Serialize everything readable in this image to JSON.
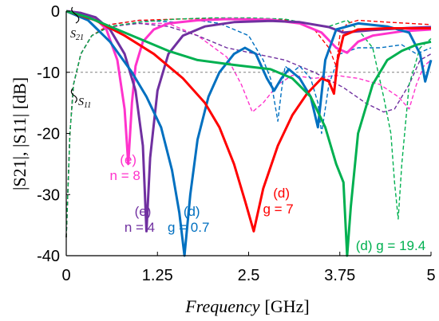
{
  "chart_data": {
    "type": "line",
    "xlabel_italic": "Frequency",
    "xlabel_unit": "[GHz]",
    "ylabel": "|S21|, |S11| [dB]",
    "xlim": [
      0,
      5
    ],
    "ylim": [
      -40,
      0
    ],
    "x_ticks": [
      "0",
      "1.25",
      "2.5",
      "3.75",
      "5"
    ],
    "y_ticks": [
      "0",
      "-10",
      "-20",
      "-30",
      "-40"
    ],
    "reference_line_db": -10,
    "s21_label": "S",
    "s21_sub": "21",
    "s11_label": "S",
    "s11_sub": "11",
    "series": [
      {
        "color": "#ff33cc",
        "param": "S21",
        "dash": false,
        "points": [
          [
            0,
            0
          ],
          [
            0.2,
            -0.3
          ],
          [
            0.4,
            -1.2
          ],
          [
            0.55,
            -3
          ],
          [
            0.7,
            -8
          ],
          [
            0.8,
            -16
          ],
          [
            0.85,
            -25
          ],
          [
            0.9,
            -15
          ],
          [
            0.95,
            -9
          ],
          [
            1.05,
            -5
          ],
          [
            1.2,
            -3
          ],
          [
            1.4,
            -2
          ],
          [
            1.8,
            -1.5
          ],
          [
            2.2,
            -1.3
          ],
          [
            2.8,
            -1.4
          ],
          [
            3.2,
            -2
          ],
          [
            3.5,
            -3.5
          ],
          [
            3.7,
            -6
          ],
          [
            3.85,
            -6.8
          ],
          [
            4.0,
            -5
          ],
          [
            4.2,
            -4
          ],
          [
            4.6,
            -3.3
          ],
          [
            5,
            -3
          ]
        ]
      },
      {
        "color": "#7030a0",
        "param": "S21",
        "dash": false,
        "points": [
          [
            0,
            0
          ],
          [
            0.2,
            -0.3
          ],
          [
            0.4,
            -1
          ],
          [
            0.6,
            -3
          ],
          [
            0.8,
            -7
          ],
          [
            0.95,
            -13
          ],
          [
            1.05,
            -22
          ],
          [
            1.1,
            -36
          ],
          [
            1.15,
            -24
          ],
          [
            1.25,
            -13
          ],
          [
            1.4,
            -7
          ],
          [
            1.6,
            -4
          ],
          [
            1.9,
            -2.5
          ],
          [
            2.3,
            -1.8
          ],
          [
            2.8,
            -1.6
          ],
          [
            3.2,
            -1.8
          ],
          [
            3.6,
            -2.6
          ],
          [
            3.8,
            -3.5
          ],
          [
            4.2,
            -3.1
          ],
          [
            4.6,
            -2.8
          ],
          [
            5,
            -2.6
          ]
        ]
      },
      {
        "color": "#0070c0",
        "param": "S21",
        "dash": false,
        "points": [
          [
            0,
            0
          ],
          [
            0.3,
            -1.5
          ],
          [
            0.6,
            -5
          ],
          [
            0.9,
            -10
          ],
          [
            1.1,
            -14
          ],
          [
            1.3,
            -19
          ],
          [
            1.45,
            -26
          ],
          [
            1.55,
            -33
          ],
          [
            1.62,
            -40
          ],
          [
            1.7,
            -30
          ],
          [
            1.8,
            -21
          ],
          [
            1.95,
            -14
          ],
          [
            2.1,
            -10
          ],
          [
            2.3,
            -7
          ],
          [
            2.45,
            -6
          ],
          [
            2.6,
            -7
          ],
          [
            2.75,
            -11
          ],
          [
            2.85,
            -13
          ],
          [
            2.95,
            -11
          ],
          [
            3.05,
            -9.5
          ],
          [
            3.2,
            -11
          ],
          [
            3.35,
            -14
          ],
          [
            3.45,
            -19
          ],
          [
            3.55,
            -8
          ],
          [
            3.7,
            -3
          ],
          [
            4.0,
            -2
          ],
          [
            4.4,
            -2.5
          ],
          [
            4.7,
            -3.5
          ],
          [
            4.85,
            -7
          ],
          [
            4.92,
            -11.5
          ],
          [
            5,
            -8
          ]
        ]
      },
      {
        "color": "#ff0000",
        "param": "S21",
        "dash": false,
        "points": [
          [
            0,
            0
          ],
          [
            0.4,
            -1.5
          ],
          [
            0.8,
            -4
          ],
          [
            1.2,
            -7
          ],
          [
            1.6,
            -11
          ],
          [
            1.9,
            -15
          ],
          [
            2.1,
            -19
          ],
          [
            2.3,
            -25
          ],
          [
            2.45,
            -31
          ],
          [
            2.57,
            -36
          ],
          [
            2.7,
            -29
          ],
          [
            2.9,
            -22
          ],
          [
            3.1,
            -17
          ],
          [
            3.3,
            -13.5
          ],
          [
            3.5,
            -11
          ],
          [
            3.6,
            -11.5
          ],
          [
            3.67,
            -13.5
          ],
          [
            3.72,
            -8
          ],
          [
            3.8,
            -4
          ],
          [
            4.0,
            -3
          ],
          [
            4.4,
            -2.8
          ],
          [
            5,
            -2.8
          ]
        ]
      },
      {
        "color": "#00b050",
        "param": "S21",
        "dash": false,
        "points": [
          [
            0,
            0
          ],
          [
            0.3,
            -1
          ],
          [
            0.6,
            -2.5
          ],
          [
            1.0,
            -4.5
          ],
          [
            1.4,
            -6.5
          ],
          [
            1.8,
            -8
          ],
          [
            2.3,
            -8.8
          ],
          [
            2.8,
            -9.5
          ],
          [
            3.1,
            -11
          ],
          [
            3.35,
            -14
          ],
          [
            3.55,
            -19
          ],
          [
            3.7,
            -25
          ],
          [
            3.8,
            -28
          ],
          [
            3.85,
            -40
          ],
          [
            3.9,
            -32
          ],
          [
            4.0,
            -20
          ],
          [
            4.2,
            -12
          ],
          [
            4.4,
            -8
          ],
          [
            4.6,
            -6.5
          ],
          [
            4.8,
            -5.5
          ],
          [
            5,
            -5
          ]
        ]
      },
      {
        "color": "#ff33cc",
        "param": "S11",
        "dash": true,
        "points": [
          [
            0,
            -37
          ],
          [
            0.05,
            -20
          ],
          [
            0.1,
            -12
          ],
          [
            0.2,
            -7
          ],
          [
            0.35,
            -4
          ],
          [
            0.55,
            -2.8
          ],
          [
            0.9,
            -2
          ],
          [
            1.4,
            -2
          ],
          [
            1.8,
            -4
          ],
          [
            2.2,
            -7.5
          ],
          [
            2.4,
            -12
          ],
          [
            2.55,
            -16.5
          ],
          [
            2.7,
            -15
          ],
          [
            2.9,
            -12
          ],
          [
            3.1,
            -10.5
          ],
          [
            3.4,
            -11
          ],
          [
            3.7,
            -10.5
          ],
          [
            4.0,
            -11
          ],
          [
            4.3,
            -12
          ],
          [
            4.55,
            -14
          ],
          [
            4.7,
            -16
          ],
          [
            4.8,
            -12
          ],
          [
            4.9,
            -9
          ],
          [
            5,
            -8
          ]
        ]
      },
      {
        "color": "#7030a0",
        "param": "S11",
        "dash": true,
        "points": [
          [
            0,
            -37
          ],
          [
            0.05,
            -20
          ],
          [
            0.1,
            -12
          ],
          [
            0.2,
            -7
          ],
          [
            0.35,
            -4
          ],
          [
            0.6,
            -2.5
          ],
          [
            1.0,
            -2
          ],
          [
            1.4,
            -2.5
          ],
          [
            1.8,
            -4
          ],
          [
            2.2,
            -6
          ],
          [
            2.6,
            -7
          ],
          [
            3.0,
            -8
          ],
          [
            3.4,
            -10
          ],
          [
            3.8,
            -12.5
          ],
          [
            4.1,
            -15
          ],
          [
            4.35,
            -16.5
          ],
          [
            4.5,
            -16
          ],
          [
            4.7,
            -12
          ],
          [
            4.85,
            -8
          ],
          [
            5,
            -7
          ]
        ]
      },
      {
        "color": "#0070c0",
        "param": "S11",
        "dash": true,
        "points": [
          [
            0,
            -37
          ],
          [
            0.05,
            -20
          ],
          [
            0.1,
            -12
          ],
          [
            0.2,
            -7
          ],
          [
            0.35,
            -4
          ],
          [
            0.6,
            -2.2
          ],
          [
            1.0,
            -1.5
          ],
          [
            1.5,
            -1.8
          ],
          [
            1.8,
            -1.5
          ],
          [
            2.1,
            -2
          ],
          [
            2.3,
            -3
          ],
          [
            2.5,
            -4
          ],
          [
            2.6,
            -6
          ],
          [
            2.7,
            -8
          ],
          [
            2.8,
            -11
          ],
          [
            2.9,
            -18
          ],
          [
            2.95,
            -13
          ],
          [
            3.0,
            -9
          ],
          [
            3.1,
            -10
          ],
          [
            3.2,
            -9
          ],
          [
            3.35,
            -11
          ],
          [
            3.45,
            -15
          ],
          [
            3.5,
            -20
          ],
          [
            3.6,
            -12
          ],
          [
            3.75,
            -7
          ],
          [
            4.0,
            -6
          ],
          [
            4.3,
            -6
          ],
          [
            4.6,
            -5.5
          ],
          [
            4.8,
            -7
          ],
          [
            5,
            -6
          ]
        ]
      },
      {
        "color": "#ff0000",
        "param": "S11",
        "dash": true,
        "points": [
          [
            0,
            -37
          ],
          [
            0.05,
            -20
          ],
          [
            0.1,
            -12
          ],
          [
            0.2,
            -7
          ],
          [
            0.35,
            -4
          ],
          [
            0.6,
            -2.2
          ],
          [
            1.0,
            -1.5
          ],
          [
            1.5,
            -1.3
          ],
          [
            2.0,
            -1.2
          ],
          [
            2.5,
            -1.2
          ],
          [
            3.0,
            -1.4
          ],
          [
            3.2,
            -2
          ],
          [
            3.4,
            -3
          ],
          [
            3.6,
            -6
          ],
          [
            3.7,
            -9
          ],
          [
            3.75,
            -4
          ],
          [
            3.85,
            -2
          ],
          [
            4.0,
            -1.5
          ],
          [
            4.4,
            -1.8
          ],
          [
            5,
            -2.2
          ]
        ]
      },
      {
        "color": "#00b050",
        "param": "S11",
        "dash": true,
        "points": [
          [
            0,
            -37
          ],
          [
            0.05,
            -20
          ],
          [
            0.1,
            -12
          ],
          [
            0.2,
            -7
          ],
          [
            0.35,
            -4
          ],
          [
            0.6,
            -2.5
          ],
          [
            1.0,
            -1.8
          ],
          [
            1.5,
            -1.3
          ],
          [
            2.0,
            -1.1
          ],
          [
            2.5,
            -1.1
          ],
          [
            3.0,
            -1.3
          ],
          [
            3.3,
            -2
          ],
          [
            3.6,
            -2.5
          ],
          [
            3.85,
            -1.5
          ],
          [
            4.0,
            -3
          ],
          [
            4.2,
            -6
          ],
          [
            4.35,
            -14
          ],
          [
            4.45,
            -20
          ],
          [
            4.5,
            -28
          ],
          [
            4.55,
            -34
          ],
          [
            4.6,
            -25
          ],
          [
            4.7,
            -12
          ],
          [
            4.85,
            -6
          ],
          [
            5,
            -4.5
          ]
        ]
      }
    ],
    "annotations": [
      {
        "color": "#ff33cc",
        "line1": "(e)",
        "line2": "n = 8",
        "x": 0.85,
        "y": -25
      },
      {
        "color": "#7030a0",
        "line1": "(e)",
        "line2": "n = 4",
        "x": 1.05,
        "y": -33.5
      },
      {
        "color": "#0070c0",
        "line1": "(d)",
        "line2": "g = 0.7",
        "x": 1.72,
        "y": -33.5
      },
      {
        "color": "#ff0000",
        "line1": "(d)",
        "line2": "g = 7",
        "x": 2.95,
        "y": -30.5
      },
      {
        "color": "#00b050",
        "line1": "",
        "line2": "(d) g = 19.4",
        "x": 3.9,
        "y": -37.5
      }
    ]
  }
}
